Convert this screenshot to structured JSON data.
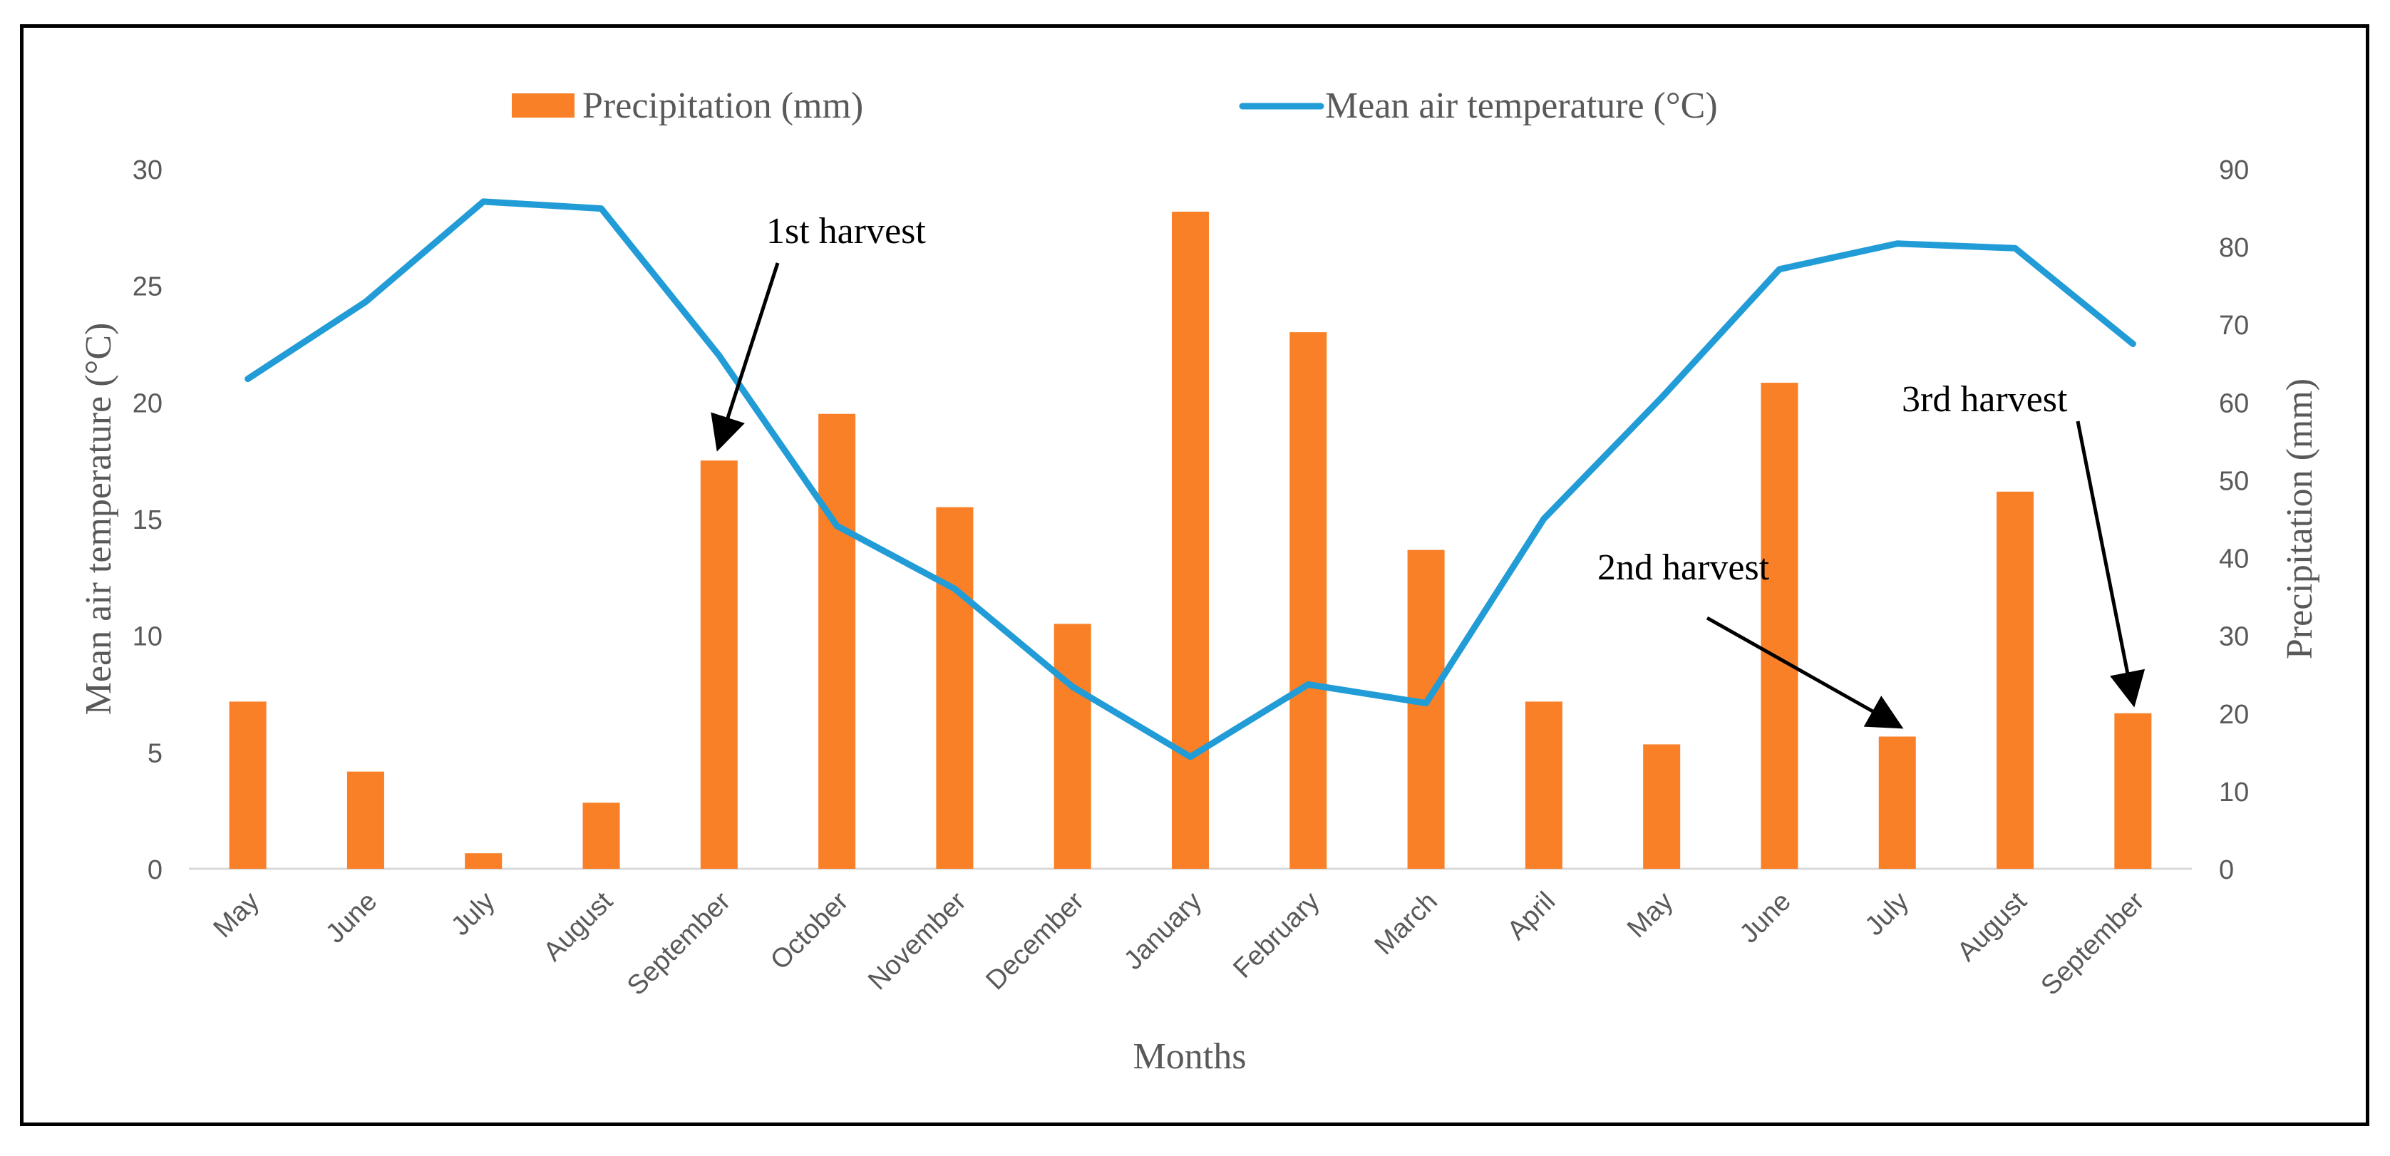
{
  "chart_data": {
    "type": "bar+line",
    "title": "",
    "legend": [
      {
        "name": "Precipitation (mm)",
        "symbol": "bar",
        "color": "#F98026"
      },
      {
        "name": "Mean air temperature (°C)",
        "symbol": "line",
        "color": "#219CD6"
      }
    ],
    "legend_placement": "top-center",
    "categories": [
      "May",
      "June",
      "July",
      "August",
      "September",
      "October",
      "November",
      "December",
      "January",
      "February",
      "March",
      "April",
      "May",
      "June",
      "July",
      "August",
      "September"
    ],
    "series": [
      {
        "name": "Precipitation (mm)",
        "type": "bar",
        "axis": "right",
        "color": "#F98026",
        "values": [
          21.5,
          12.5,
          2,
          8.5,
          52.5,
          58.5,
          46.5,
          31.5,
          84.5,
          69,
          41,
          21.5,
          16,
          62.5,
          17,
          48.5,
          20
        ]
      },
      {
        "name": "Mean air temperature (°C)",
        "type": "line",
        "axis": "left",
        "color": "#219CD6",
        "values": [
          21,
          24.3,
          28.6,
          28.3,
          22,
          14.7,
          12,
          7.8,
          4.8,
          7.9,
          7.1,
          15,
          20.2,
          25.7,
          26.8,
          26.6,
          22.5
        ]
      }
    ],
    "xlabel": "Months",
    "ylabel_left": "Mean air temperature (°C)",
    "ylabel_right": "Precipitation (mm)",
    "ylim_left": [
      0,
      30
    ],
    "yticks_left": [
      0,
      5,
      10,
      15,
      20,
      25,
      30
    ],
    "ylim_right": [
      0,
      90
    ],
    "yticks_right": [
      0,
      10,
      20,
      30,
      40,
      50,
      60,
      70,
      80,
      90
    ],
    "grid": false,
    "annotations": [
      {
        "text": "1st harvest",
        "category_index": 4
      },
      {
        "text": "2nd harvest",
        "category_index": 14
      },
      {
        "text": "3rd harvest",
        "category_index": 16
      }
    ]
  }
}
